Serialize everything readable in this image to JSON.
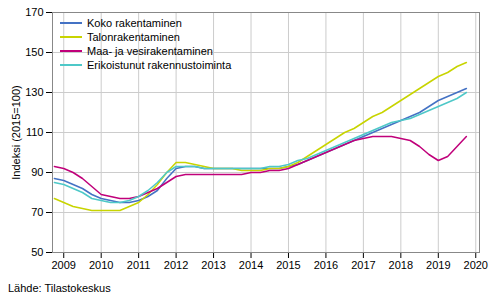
{
  "chart_data": {
    "type": "line",
    "ylabel": "Indeksi (2015=100)",
    "source": "Lähde: Tilastokeskus",
    "x": [
      2008.75,
      2009.0,
      2009.25,
      2009.5,
      2009.75,
      2010.0,
      2010.25,
      2010.5,
      2010.75,
      2011.0,
      2011.25,
      2011.5,
      2011.75,
      2012.0,
      2012.25,
      2012.5,
      2012.75,
      2013.0,
      2013.25,
      2013.5,
      2013.75,
      2014.0,
      2014.25,
      2014.5,
      2014.75,
      2015.0,
      2015.25,
      2015.5,
      2015.75,
      2016.0,
      2016.25,
      2016.5,
      2016.75,
      2017.0,
      2017.25,
      2017.5,
      2017.75,
      2018.0,
      2018.25,
      2018.5,
      2018.75,
      2019.0,
      2019.25,
      2019.5,
      2019.75
    ],
    "series": [
      {
        "name": "Koko rakentaminen",
        "color": "#4472c4",
        "values": [
          87,
          86,
          84,
          82,
          79,
          77,
          76,
          75,
          75,
          76,
          78,
          81,
          87,
          92,
          93,
          93,
          92,
          92,
          92,
          92,
          92,
          92,
          92,
          92,
          92,
          93,
          94,
          96,
          98,
          100,
          102,
          104,
          106,
          108,
          110,
          112,
          114,
          116,
          118,
          120,
          123,
          126,
          128,
          130,
          132
        ]
      },
      {
        "name": "Talonrakentaminen",
        "color": "#c8d400",
        "values": [
          77,
          75,
          73,
          72,
          71,
          71,
          71,
          71,
          73,
          75,
          79,
          84,
          90,
          95,
          95,
          94,
          93,
          92,
          92,
          92,
          91,
          91,
          91,
          92,
          92,
          93,
          95,
          98,
          101,
          104,
          107,
          110,
          112,
          115,
          118,
          120,
          123,
          126,
          129,
          132,
          135,
          138,
          140,
          143,
          145
        ]
      },
      {
        "name": "Maa- ja vesirakentaminen",
        "color": "#c0007a",
        "values": [
          93,
          92,
          90,
          87,
          83,
          79,
          78,
          77,
          77,
          78,
          80,
          82,
          85,
          88,
          89,
          89,
          89,
          89,
          89,
          89,
          89,
          90,
          90,
          91,
          91,
          92,
          94,
          96,
          98,
          100,
          102,
          104,
          106,
          107,
          108,
          108,
          108,
          107,
          106,
          103,
          99,
          96,
          98,
          103,
          108
        ]
      },
      {
        "name": "Erikoistunut rakennustoiminta",
        "color": "#4ec8c8",
        "values": [
          85,
          84,
          82,
          80,
          77,
          76,
          75,
          75,
          76,
          78,
          81,
          85,
          90,
          93,
          93,
          93,
          92,
          92,
          92,
          92,
          92,
          92,
          92,
          93,
          93,
          94,
          96,
          97,
          99,
          101,
          103,
          105,
          107,
          109,
          111,
          113,
          115,
          116,
          117,
          119,
          121,
          123,
          125,
          127,
          130
        ]
      }
    ],
    "xlim": [
      2008.7,
      2020.1
    ],
    "xticks": [
      2009,
      2010,
      2011,
      2012,
      2013,
      2014,
      2015,
      2016,
      2017,
      2018,
      2019,
      2020
    ],
    "ylim": [
      50,
      170
    ],
    "yticks": [
      50,
      70,
      90,
      110,
      130,
      150,
      170
    ],
    "grid": true,
    "legend": "upper left"
  }
}
